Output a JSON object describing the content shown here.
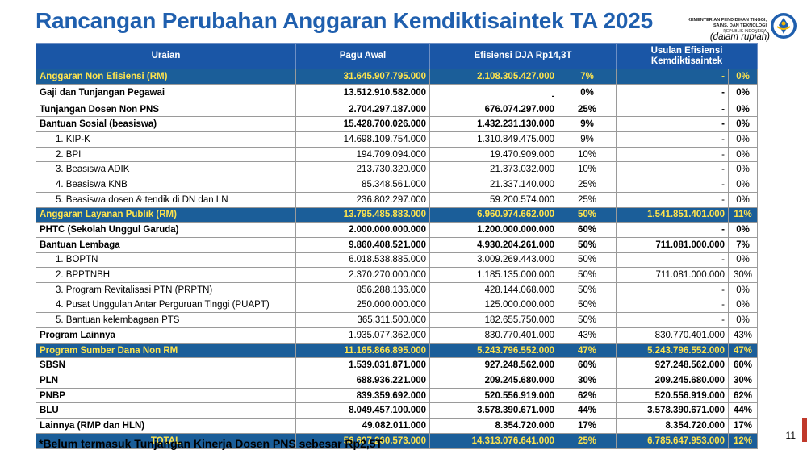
{
  "header": {
    "title": "Rancangan Perubahan Anggaran Kemdiktisaintek TA 2025",
    "logo_line1": "KEMENTERIAN PENDIDIKAN TINGGI,",
    "logo_line2": "SAINS, DAN TEKNOLOGI",
    "logo_line3": "REPUBLIK INDONESIA",
    "unit_note": "(dalam rupiah)"
  },
  "table": {
    "headers": [
      "Uraian",
      "Pagu Awal",
      "Efisiensi DJA Rp14,3T",
      "Usulan Efisiensi Kemdiktisaintek"
    ],
    "rows": [
      {
        "type": "section",
        "label": "Anggaran Non Efisiensi (RM)",
        "pagu": "31.645.907.795.000",
        "efisiensi": "2.108.305.427.000",
        "pct": "7%",
        "usulan": "-",
        "usulan_pct": "0%"
      },
      {
        "type": "bold-tall",
        "label": "Gaji dan Tunjangan Pegawai",
        "pagu": "13.512.910.582.000",
        "efisiensi": "-",
        "pct": "0%",
        "usulan": "-",
        "usulan_pct": "0%"
      },
      {
        "type": "bold",
        "label": "Tunjangan Dosen Non PNS",
        "pagu": "2.704.297.187.000",
        "efisiensi": "676.074.297.000",
        "pct": "25%",
        "usulan": "-",
        "usulan_pct": "0%"
      },
      {
        "type": "bold",
        "label": "Bantuan Sosial (beasiswa)",
        "pagu": "15.428.700.026.000",
        "efisiensi": "1.432.231.130.000",
        "pct": "9%",
        "usulan": "-",
        "usulan_pct": "0%"
      },
      {
        "type": "item",
        "label": "1. KIP-K",
        "pagu": "14.698.109.754.000",
        "efisiensi": "1.310.849.475.000",
        "pct": "9%",
        "usulan": "-",
        "usulan_pct": "0%"
      },
      {
        "type": "item",
        "label": "2. BPI",
        "pagu": "194.709.094.000",
        "efisiensi": "19.470.909.000",
        "pct": "10%",
        "usulan": "-",
        "usulan_pct": "0%"
      },
      {
        "type": "item",
        "label": "3. Beasiswa ADIK",
        "pagu": "213.730.320.000",
        "efisiensi": "21.373.032.000",
        "pct": "10%",
        "usulan": "-",
        "usulan_pct": "0%"
      },
      {
        "type": "item",
        "label": "4. Beasiswa KNB",
        "pagu": "85.348.561.000",
        "efisiensi": "21.337.140.000",
        "pct": "25%",
        "usulan": "-",
        "usulan_pct": "0%"
      },
      {
        "type": "item",
        "label": "5. Beasiswa dosen & tendik di DN dan LN",
        "pagu": "236.802.297.000",
        "efisiensi": "59.200.574.000",
        "pct": "25%",
        "usulan": "-",
        "usulan_pct": "0%"
      },
      {
        "type": "section",
        "label": "Anggaran Layanan Publik (RM)",
        "pagu": "13.795.485.883.000",
        "efisiensi": "6.960.974.662.000",
        "pct": "50%",
        "usulan": "1.541.851.401.000",
        "usulan_pct": "11%"
      },
      {
        "type": "bold",
        "label": "PHTC (Sekolah Unggul Garuda)",
        "pagu": "2.000.000.000.000",
        "efisiensi": "1.200.000.000.000",
        "pct": "60%",
        "usulan": "-",
        "usulan_pct": "0%"
      },
      {
        "type": "bold",
        "label": "Bantuan Lembaga",
        "pagu": "9.860.408.521.000",
        "efisiensi": "4.930.204.261.000",
        "pct": "50%",
        "usulan": "711.081.000.000",
        "usulan_pct": "7%"
      },
      {
        "type": "item",
        "label": "1. BOPTN",
        "pagu": "6.018.538.885.000",
        "efisiensi": "3.009.269.443.000",
        "pct": "50%",
        "usulan": "-",
        "usulan_pct": "0%"
      },
      {
        "type": "item",
        "label": "2. BPPTNBH",
        "pagu": "2.370.270.000.000",
        "efisiensi": "1.185.135.000.000",
        "pct": "50%",
        "usulan": "711.081.000.000",
        "usulan_pct": "30%"
      },
      {
        "type": "item",
        "label": "3. Program Revitalisasi PTN (PRPTN)",
        "pagu": "856.288.136.000",
        "efisiensi": "428.144.068.000",
        "pct": "50%",
        "usulan": "-",
        "usulan_pct": "0%"
      },
      {
        "type": "item",
        "label": "4. Pusat Unggulan Antar Perguruan Tinggi (PUAPT)",
        "pagu": "250.000.000.000",
        "efisiensi": "125.000.000.000",
        "pct": "50%",
        "usulan": "-",
        "usulan_pct": "0%"
      },
      {
        "type": "item",
        "label": "5. Bantuan kelembagaan PTS",
        "pagu": "365.311.500.000",
        "efisiensi": "182.655.750.000",
        "pct": "50%",
        "usulan": "-",
        "usulan_pct": "0%"
      },
      {
        "type": "bold-lbl",
        "label": "Program Lainnya",
        "pagu": "1.935.077.362.000",
        "efisiensi": "830.770.401.000",
        "pct": "43%",
        "usulan": "830.770.401.000",
        "usulan_pct": "43%"
      },
      {
        "type": "section",
        "label": "Program Sumber Dana Non RM",
        "pagu": "11.165.866.895.000",
        "efisiensi": "5.243.796.552.000",
        "pct": "47%",
        "usulan": "5.243.796.552.000",
        "usulan_pct": "47%"
      },
      {
        "type": "bold",
        "label": "SBSN",
        "pagu": "1.539.031.871.000",
        "efisiensi": "927.248.562.000",
        "pct": "60%",
        "usulan": "927.248.562.000",
        "usulan_pct": "60%"
      },
      {
        "type": "bold",
        "label": "PLN",
        "pagu": "688.936.221.000",
        "efisiensi": "209.245.680.000",
        "pct": "30%",
        "usulan": "209.245.680.000",
        "usulan_pct": "30%"
      },
      {
        "type": "bold",
        "label": "PNBP",
        "pagu": "839.359.692.000",
        "efisiensi": "520.556.919.000",
        "pct": "62%",
        "usulan": "520.556.919.000",
        "usulan_pct": "62%"
      },
      {
        "type": "bold",
        "label": "BLU",
        "pagu": "8.049.457.100.000",
        "efisiensi": "3.578.390.671.000",
        "pct": "44%",
        "usulan": "3.578.390.671.000",
        "usulan_pct": "44%"
      },
      {
        "type": "bold",
        "label": "Lainnya (RMP dan HLN)",
        "pagu": "49.082.011.000",
        "efisiensi": "8.354.720.000",
        "pct": "17%",
        "usulan": "8.354.720.000",
        "usulan_pct": "17%"
      },
      {
        "type": "total",
        "label": "TOTAL",
        "pagu": "56.607.260.573.000",
        "efisiensi": "14.313.076.641.000",
        "pct": "25%",
        "usulan": "6.785.647.953.000",
        "usulan_pct": "12%"
      }
    ]
  },
  "footnote": "*Belum termasuk Tunjangan Kinerja Dosen PNS sebesar Rp2,5T",
  "page_number": "11",
  "colors": {
    "title": "#1f5fae",
    "header_bg": "#1a56a6",
    "section_bg": "#1b5e99",
    "section_text": "#ffe44d"
  }
}
